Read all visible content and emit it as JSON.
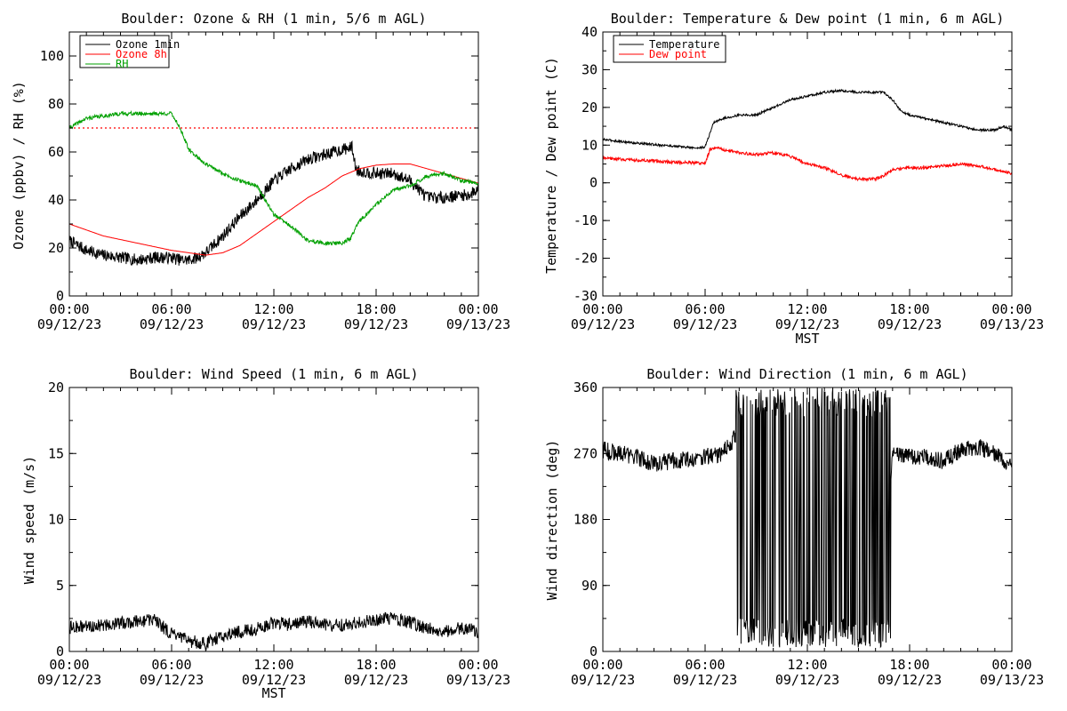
{
  "chart_data": [
    {
      "type": "line",
      "title": "Boulder: Ozone & RH (1 min, 5/6 m AGL)",
      "xlabel": "",
      "ylabel": "Ozone (ppbv) / RH (%)",
      "ylim": [
        0,
        110
      ],
      "yticks": [
        0,
        20,
        40,
        60,
        80,
        100
      ],
      "xlim": [
        "2023-09-12 00:00",
        "2023-09-13 00:00"
      ],
      "xticks": [
        [
          "00:00",
          "09/12/23"
        ],
        [
          "06:00",
          "09/12/23"
        ],
        [
          "12:00",
          "09/12/23"
        ],
        [
          "18:00",
          "09/12/23"
        ],
        [
          "00:00",
          "09/13/23"
        ]
      ],
      "legend": "top-left",
      "reference_lines": [
        {
          "y": 70,
          "color": "#ff0000",
          "style": "dotted"
        }
      ],
      "series": [
        {
          "name": "Ozone 1min",
          "color": "#000000",
          "noise": 2.5,
          "points": [
            [
              0,
              23
            ],
            [
              1,
              19
            ],
            [
              2,
              17
            ],
            [
              3,
              16
            ],
            [
              4,
              15
            ],
            [
              5,
              16
            ],
            [
              6,
              16
            ],
            [
              6.5,
              15
            ],
            [
              7,
              15
            ],
            [
              7.5,
              16
            ],
            [
              8,
              18
            ],
            [
              9,
              25
            ],
            [
              10,
              33
            ],
            [
              11,
              40
            ],
            [
              12,
              48
            ],
            [
              13,
              53
            ],
            [
              14,
              57
            ],
            [
              15,
              59
            ],
            [
              16,
              61
            ],
            [
              16.6,
              62
            ],
            [
              16.8,
              53
            ],
            [
              17,
              52
            ],
            [
              18,
              51
            ],
            [
              19,
              51
            ],
            [
              20,
              48
            ],
            [
              21,
              41
            ],
            [
              22,
              41
            ],
            [
              23,
              42
            ],
            [
              23.5,
              42
            ],
            [
              24,
              45
            ]
          ]
        },
        {
          "name": "Ozone 8h",
          "color": "#ff0000",
          "noise": 0,
          "points": [
            [
              0,
              30
            ],
            [
              2,
              25
            ],
            [
              4,
              22
            ],
            [
              6,
              19
            ],
            [
              7,
              18
            ],
            [
              8,
              17
            ],
            [
              9,
              18
            ],
            [
              10,
              21
            ],
            [
              11,
              26
            ],
            [
              12,
              31
            ],
            [
              13,
              36
            ],
            [
              14,
              41
            ],
            [
              15,
              45
            ],
            [
              16,
              50
            ],
            [
              17,
              53
            ],
            [
              18,
              54.5
            ],
            [
              19,
              55
            ],
            [
              20,
              55
            ],
            [
              21,
              53
            ],
            [
              22,
              51
            ],
            [
              23,
              49
            ],
            [
              24,
              47
            ]
          ]
        },
        {
          "name": "RH",
          "color": "#00a000",
          "noise": 0.8,
          "points": [
            [
              0,
              70
            ],
            [
              1,
              74
            ],
            [
              2,
              75
            ],
            [
              3,
              76
            ],
            [
              4,
              76
            ],
            [
              5,
              76
            ],
            [
              6,
              76
            ],
            [
              6.5,
              70
            ],
            [
              7,
              61
            ],
            [
              8,
              55
            ],
            [
              9,
              51
            ],
            [
              10,
              48
            ],
            [
              11,
              46
            ],
            [
              12,
              34
            ],
            [
              13,
              29
            ],
            [
              14,
              23
            ],
            [
              15,
              22
            ],
            [
              16,
              22
            ],
            [
              16.5,
              24
            ],
            [
              17,
              31
            ],
            [
              18,
              38
            ],
            [
              19,
              44
            ],
            [
              20,
              46
            ],
            [
              21,
              50
            ],
            [
              22,
              51
            ],
            [
              23,
              48
            ],
            [
              24,
              47
            ]
          ]
        }
      ]
    },
    {
      "type": "line",
      "title": "Boulder: Temperature & Dew point (1 min, 6 m AGL)",
      "xlabel": "MST",
      "ylabel": "Temperature / Dew point (C)",
      "ylim": [
        -30,
        40
      ],
      "yticks": [
        -30,
        -20,
        -10,
        0,
        10,
        20,
        30,
        40
      ],
      "xlim": [
        "2023-09-12 00:00",
        "2023-09-13 00:00"
      ],
      "xticks": [
        [
          "00:00",
          "09/12/23"
        ],
        [
          "06:00",
          "09/12/23"
        ],
        [
          "12:00",
          "09/12/23"
        ],
        [
          "18:00",
          "09/12/23"
        ],
        [
          "00:00",
          "09/13/23"
        ]
      ],
      "legend": "top-left",
      "series": [
        {
          "name": "Temperature",
          "color": "#000000",
          "noise": 0.3,
          "points": [
            [
              0,
              11.5
            ],
            [
              2,
              10.5
            ],
            [
              4,
              9.8
            ],
            [
              5.5,
              9.2
            ],
            [
              6,
              9.5
            ],
            [
              6.5,
              16
            ],
            [
              7,
              17
            ],
            [
              8,
              18
            ],
            [
              9,
              18
            ],
            [
              10,
              20
            ],
            [
              11,
              22
            ],
            [
              12,
              23
            ],
            [
              13,
              24
            ],
            [
              14,
              24.5
            ],
            [
              15,
              24
            ],
            [
              16,
              24
            ],
            [
              16.5,
              24
            ],
            [
              17,
              22
            ],
            [
              17.5,
              19
            ],
            [
              18,
              18
            ],
            [
              19,
              17
            ],
            [
              20,
              16
            ],
            [
              21,
              15
            ],
            [
              22,
              14
            ],
            [
              23,
              14
            ],
            [
              23.5,
              15
            ],
            [
              24,
              14
            ]
          ]
        },
        {
          "name": "Dew point",
          "color": "#ff0000",
          "noise": 0.4,
          "points": [
            [
              0,
              6.5
            ],
            [
              2,
              6
            ],
            [
              4,
              5.5
            ],
            [
              6,
              5.2
            ],
            [
              6.3,
              9
            ],
            [
              6.8,
              9.5
            ],
            [
              7,
              8.8
            ],
            [
              8,
              8
            ],
            [
              9,
              7.5
            ],
            [
              10,
              8
            ],
            [
              11,
              7
            ],
            [
              12,
              5
            ],
            [
              13,
              4
            ],
            [
              14,
              2
            ],
            [
              15,
              1
            ],
            [
              16,
              1
            ],
            [
              16.5,
              2
            ],
            [
              17,
              3.5
            ],
            [
              18,
              4
            ],
            [
              19,
              4
            ],
            [
              20,
              4.5
            ],
            [
              21,
              5
            ],
            [
              22,
              4.5
            ],
            [
              23,
              3.5
            ],
            [
              24,
              2.5
            ]
          ]
        }
      ]
    },
    {
      "type": "line",
      "title": "Boulder: Wind Speed (1 min, 6 m AGL)",
      "xlabel": "MST",
      "ylabel": "Wind speed (m/s)",
      "ylim": [
        0,
        20
      ],
      "yticks": [
        0,
        5,
        10,
        15,
        20
      ],
      "xlim": [
        "2023-09-12 00:00",
        "2023-09-13 00:00"
      ],
      "xticks": [
        [
          "00:00",
          "09/12/23"
        ],
        [
          "06:00",
          "09/12/23"
        ],
        [
          "12:00",
          "09/12/23"
        ],
        [
          "18:00",
          "09/12/23"
        ],
        [
          "00:00",
          "09/13/23"
        ]
      ],
      "series": [
        {
          "name": "",
          "color": "#000000",
          "noise": 0.5,
          "points": [
            [
              0,
              1.8
            ],
            [
              2,
              2
            ],
            [
              4,
              2.3
            ],
            [
              5,
              2.4
            ],
            [
              6,
              1.3
            ],
            [
              7,
              0.8
            ],
            [
              8,
              0.6
            ],
            [
              9,
              1.2
            ],
            [
              10,
              1.5
            ],
            [
              11,
              1.7
            ],
            [
              12,
              2.2
            ],
            [
              13,
              2
            ],
            [
              14,
              2.3
            ],
            [
              15,
              2
            ],
            [
              16,
              2
            ],
            [
              17,
              2.2
            ],
            [
              18,
              2.4
            ],
            [
              19,
              2.5
            ],
            [
              20,
              2.2
            ],
            [
              21,
              1.8
            ],
            [
              22,
              1.5
            ],
            [
              23,
              1.8
            ],
            [
              24,
              1.5
            ]
          ]
        }
      ]
    },
    {
      "type": "line",
      "title": "Boulder: Wind Direction (1 min, 6 m AGL)",
      "xlabel": "",
      "ylabel": "Wind direction (deg)",
      "ylim": [
        0,
        360
      ],
      "yticks": [
        0,
        90,
        180,
        270,
        360
      ],
      "xlim": [
        "2023-09-12 00:00",
        "2023-09-13 00:00"
      ],
      "xticks": [
        [
          "00:00",
          "09/12/23"
        ],
        [
          "06:00",
          "09/12/23"
        ],
        [
          "12:00",
          "09/12/23"
        ],
        [
          "18:00",
          "09/12/23"
        ],
        [
          "00:00",
          "09/13/23"
        ]
      ],
      "series": [
        {
          "name": "",
          "color": "#000000",
          "noise": 12,
          "points": [
            [
              0,
              275
            ],
            [
              2,
              265
            ],
            [
              3,
              255
            ],
            [
              4,
              260
            ],
            [
              5,
              262
            ],
            [
              6,
              265
            ],
            [
              7,
              270
            ],
            [
              8,
              300
            ],
            [
              9,
              180
            ],
            [
              10,
              180
            ],
            [
              11,
              180
            ],
            [
              12,
              180
            ],
            [
              13,
              180
            ],
            [
              14,
              180
            ],
            [
              15,
              180
            ],
            [
              16,
              180
            ],
            [
              16.8,
              180
            ],
            [
              17,
              270
            ],
            [
              18,
              265
            ],
            [
              19,
              265
            ],
            [
              20,
              260
            ],
            [
              21,
              275
            ],
            [
              22,
              280
            ],
            [
              23,
              270
            ],
            [
              24,
              255
            ]
          ]
        }
      ]
    }
  ]
}
